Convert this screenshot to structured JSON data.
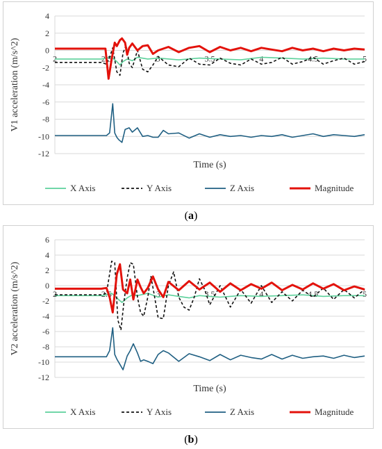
{
  "chart_data": [
    {
      "type": "line",
      "xlabel": "Time (s)",
      "ylabel": "V1 acceleration (m/s^2)",
      "xlim": [
        2,
        5
      ],
      "ylim": [
        -12,
        4
      ],
      "x_ticks": [
        "2",
        "2.5",
        "3",
        "3.5",
        "4",
        "4.5",
        "5"
      ],
      "y_ticks": [
        "4",
        "2",
        "0",
        "-2",
        "-4",
        "-6",
        "-8",
        "-10",
        "-12"
      ],
      "grid": "horizontal",
      "legend": "bottom",
      "caption_label": "a",
      "series": [
        {
          "name": "X Axis",
          "color": "#5cd19b",
          "style": "solid",
          "x": [
            2,
            2.45,
            2.5,
            2.55,
            2.6,
            2.63,
            2.66,
            2.7,
            2.75,
            2.8,
            2.9,
            3.0,
            3.2,
            3.4,
            3.6,
            3.8,
            4.0,
            4.2,
            4.4,
            4.6,
            4.8,
            5.0
          ],
          "values": [
            -1.0,
            -1.0,
            -0.9,
            -0.8,
            -1.3,
            -1.7,
            -1.3,
            -1.0,
            -1.2,
            -0.8,
            -1.0,
            -0.9,
            -1.1,
            -0.9,
            -1.0,
            -1.1,
            -0.8,
            -0.9,
            -1.0,
            -0.9,
            -1.0,
            -1.0
          ]
        },
        {
          "name": "Y Axis",
          "color": "#111111",
          "style": "dashed",
          "x": [
            2,
            2.45,
            2.5,
            2.53,
            2.56,
            2.6,
            2.63,
            2.66,
            2.69,
            2.72,
            2.75,
            2.8,
            2.85,
            2.9,
            2.95,
            3.0,
            3.1,
            3.2,
            3.3,
            3.4,
            3.5,
            3.6,
            3.7,
            3.8,
            3.9,
            4.0,
            4.1,
            4.2,
            4.3,
            4.4,
            4.5,
            4.6,
            4.7,
            4.8,
            4.9,
            5.0
          ],
          "values": [
            -1.4,
            -1.4,
            -1.6,
            -0.8,
            0.3,
            -2.5,
            -2.9,
            -0.3,
            0.6,
            -1.5,
            -2.0,
            0.0,
            -2.2,
            -2.5,
            -1.7,
            -0.7,
            -1.7,
            -1.9,
            -0.9,
            -1.6,
            -1.7,
            -0.9,
            -1.5,
            -1.7,
            -1.0,
            -1.6,
            -1.4,
            -0.8,
            -1.6,
            -1.3,
            -0.8,
            -1.6,
            -1.2,
            -0.9,
            -1.6,
            -1.3
          ]
        },
        {
          "name": "Z Axis",
          "color": "#1f5f82",
          "style": "solid",
          "x": [
            2,
            2.45,
            2.5,
            2.53,
            2.56,
            2.58,
            2.6,
            2.62,
            2.65,
            2.68,
            2.72,
            2.75,
            2.8,
            2.85,
            2.9,
            2.95,
            3.0,
            3.05,
            3.1,
            3.2,
            3.3,
            3.4,
            3.5,
            3.6,
            3.7,
            3.8,
            3.9,
            4.0,
            4.1,
            4.2,
            4.3,
            4.4,
            4.5,
            4.6,
            4.7,
            4.8,
            4.9,
            5.0
          ],
          "values": [
            -9.9,
            -9.9,
            -9.9,
            -9.6,
            -6.2,
            -9.6,
            -10.1,
            -10.4,
            -10.7,
            -9.2,
            -9.0,
            -9.5,
            -9.0,
            -10.0,
            -9.9,
            -10.1,
            -10.1,
            -9.3,
            -9.7,
            -9.6,
            -10.2,
            -9.7,
            -10.1,
            -9.8,
            -10.0,
            -9.9,
            -10.1,
            -9.9,
            -10.0,
            -9.8,
            -10.1,
            -9.9,
            -9.7,
            -10.0,
            -9.8,
            -9.9,
            -10.0,
            -9.8
          ]
        },
        {
          "name": "Magnitude",
          "color": "#e3120b",
          "style": "solid",
          "x": [
            2,
            2.45,
            2.49,
            2.52,
            2.55,
            2.58,
            2.6,
            2.63,
            2.65,
            2.68,
            2.7,
            2.72,
            2.75,
            2.8,
            2.85,
            2.9,
            2.95,
            3.0,
            3.1,
            3.2,
            3.3,
            3.4,
            3.5,
            3.6,
            3.7,
            3.8,
            3.9,
            4.0,
            4.1,
            4.2,
            4.3,
            4.4,
            4.5,
            4.6,
            4.7,
            4.8,
            4.9,
            5.0
          ],
          "values": [
            0.2,
            0.2,
            0.2,
            -3.3,
            -1.0,
            0.9,
            0.5,
            1.2,
            1.4,
            0.9,
            -0.5,
            0.3,
            0.8,
            0.0,
            0.5,
            0.6,
            -0.4,
            0.0,
            0.4,
            -0.2,
            0.3,
            0.5,
            -0.2,
            0.4,
            0.0,
            0.3,
            -0.1,
            0.3,
            0.1,
            -0.1,
            0.3,
            0.0,
            0.2,
            -0.1,
            0.2,
            0.0,
            0.2,
            0.1
          ]
        }
      ]
    },
    {
      "type": "line",
      "xlabel": "Time (s)",
      "ylabel": "V2 acceleration (m/s^2)",
      "xlim": [
        2,
        5
      ],
      "ylim": [
        -12,
        6
      ],
      "x_ticks": [
        "2",
        "2.5",
        "3",
        "3.5",
        "4",
        "4.5",
        "5"
      ],
      "y_ticks": [
        "6",
        "4",
        "2",
        "0",
        "-2",
        "-4",
        "-6",
        "-8",
        "-10",
        "-12"
      ],
      "grid": "horizontal",
      "legend": "bottom",
      "caption_label": "b",
      "series": [
        {
          "name": "X Axis",
          "color": "#5cd19b",
          "style": "solid",
          "x": [
            2,
            2.45,
            2.5,
            2.55,
            2.6,
            2.65,
            2.7,
            2.75,
            2.8,
            2.9,
            3.0,
            3.1,
            3.2,
            3.3,
            3.4,
            3.5,
            3.6,
            3.8,
            4.0,
            4.2,
            4.4,
            4.6,
            4.8,
            5.0
          ],
          "values": [
            -1.3,
            -1.3,
            -1.2,
            -1.0,
            -1.6,
            -2.2,
            -1.6,
            -1.2,
            -1.3,
            -1.0,
            -1.5,
            -1.2,
            -1.4,
            -1.6,
            -1.3,
            -1.4,
            -1.5,
            -1.3,
            -1.4,
            -1.3,
            -1.2,
            -1.4,
            -1.3,
            -1.3
          ]
        },
        {
          "name": "Y Axis",
          "color": "#111111",
          "style": "dashed",
          "x": [
            2,
            2.45,
            2.5,
            2.55,
            2.58,
            2.61,
            2.64,
            2.67,
            2.7,
            2.73,
            2.76,
            2.8,
            2.83,
            2.86,
            2.9,
            2.93,
            2.96,
            3.0,
            3.05,
            3.1,
            3.15,
            3.2,
            3.25,
            3.3,
            3.35,
            3.4,
            3.45,
            3.5,
            3.6,
            3.7,
            3.8,
            3.9,
            4.0,
            4.1,
            4.2,
            4.3,
            4.4,
            4.5,
            4.6,
            4.7,
            4.8,
            4.9,
            5.0
          ],
          "values": [
            -1.2,
            -1.2,
            -1.0,
            3.2,
            3.0,
            -4.5,
            -5.8,
            -2.0,
            1.0,
            3.0,
            2.8,
            -1.5,
            -3.5,
            -4.0,
            -1.5,
            1.2,
            -1.0,
            -4.2,
            -4.3,
            0.0,
            1.8,
            -1.5,
            -2.8,
            -3.2,
            -1.5,
            0.9,
            -0.5,
            -2.5,
            0.0,
            -2.8,
            -0.5,
            -2.3,
            0.0,
            -2.2,
            -0.8,
            -2.0,
            -0.6,
            -1.5,
            -0.3,
            -1.8,
            -0.5,
            -1.6,
            -0.5
          ]
        },
        {
          "name": "Z Axis",
          "color": "#1f5f82",
          "style": "solid",
          "x": [
            2,
            2.45,
            2.5,
            2.53,
            2.56,
            2.58,
            2.6,
            2.63,
            2.66,
            2.7,
            2.73,
            2.76,
            2.8,
            2.83,
            2.86,
            2.9,
            2.95,
            3.0,
            3.05,
            3.1,
            3.2,
            3.3,
            3.4,
            3.5,
            3.6,
            3.7,
            3.8,
            3.9,
            4.0,
            4.1,
            4.2,
            4.3,
            4.4,
            4.5,
            4.6,
            4.7,
            4.8,
            4.9,
            5.0
          ],
          "values": [
            -9.3,
            -9.3,
            -9.3,
            -8.5,
            -5.5,
            -9.0,
            -9.6,
            -10.3,
            -11.0,
            -9.2,
            -8.5,
            -7.6,
            -8.8,
            -9.9,
            -9.7,
            -9.9,
            -10.2,
            -9.0,
            -8.5,
            -8.8,
            -9.9,
            -8.9,
            -9.3,
            -9.8,
            -9.0,
            -9.7,
            -9.1,
            -9.4,
            -9.6,
            -9.0,
            -9.6,
            -9.1,
            -9.5,
            -9.3,
            -9.2,
            -9.5,
            -9.1,
            -9.4,
            -9.2
          ]
        },
        {
          "name": "Magnitude",
          "color": "#e3120b",
          "style": "solid",
          "x": [
            2,
            2.45,
            2.5,
            2.53,
            2.56,
            2.6,
            2.63,
            2.66,
            2.7,
            2.73,
            2.76,
            2.8,
            2.83,
            2.86,
            2.9,
            2.95,
            3.0,
            3.05,
            3.1,
            3.2,
            3.3,
            3.4,
            3.5,
            3.6,
            3.7,
            3.8,
            3.9,
            4.0,
            4.1,
            4.2,
            4.3,
            4.4,
            4.5,
            4.6,
            4.7,
            4.8,
            4.9,
            5.0
          ],
          "values": [
            -0.4,
            -0.4,
            -0.3,
            -1.5,
            -3.5,
            1.5,
            2.8,
            -0.5,
            -1.0,
            0.8,
            -1.8,
            0.8,
            -0.2,
            -1.0,
            -0.3,
            1.2,
            -0.5,
            -1.5,
            0.5,
            -0.6,
            0.6,
            -0.5,
            0.4,
            -0.8,
            0.3,
            -0.6,
            0.2,
            -0.4,
            0.4,
            -0.6,
            0.1,
            -0.5,
            0.3,
            -0.4,
            0.2,
            -0.6,
            -0.1,
            -0.5
          ]
        }
      ]
    }
  ]
}
